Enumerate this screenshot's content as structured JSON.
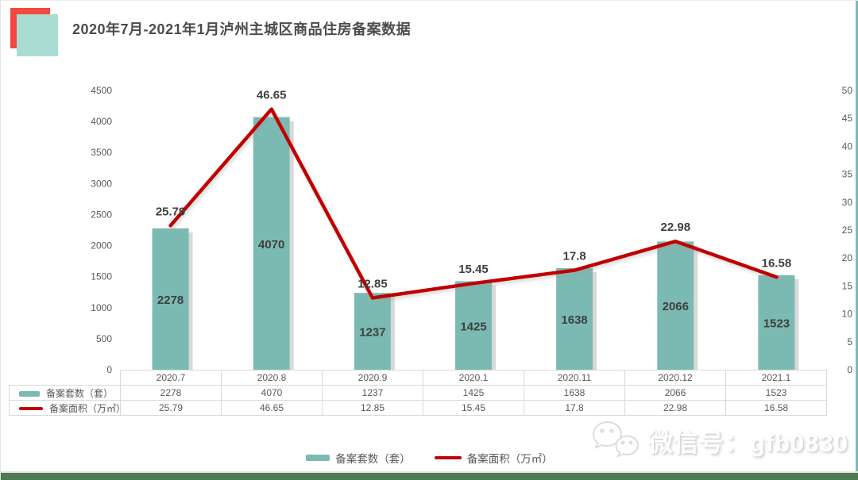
{
  "header": {
    "title": "2020年7月-2021年1月泸州主城区商品住房备案数据"
  },
  "chart_data": {
    "type": "bar+line",
    "title": "2020年7月-2021年1月泸州主城区商品住房备案数据",
    "categories": [
      "2020.7",
      "2020.8",
      "2020.9",
      "2020.1",
      "2020.11",
      "2020.12",
      "2021.1"
    ],
    "series": [
      {
        "name": "备案套数（套）",
        "chart": "bar",
        "axis": "left",
        "color": "#7bbab2",
        "values": [
          2278,
          4070,
          1237,
          1425,
          1638,
          2066,
          1523
        ],
        "labels": [
          "2278",
          "4070",
          "1237",
          "1425",
          "1638",
          "2066",
          "1523"
        ]
      },
      {
        "name": "备案面积（万㎡）",
        "chart": "line",
        "axis": "right",
        "color": "#c00000",
        "values": [
          25.79,
          46.65,
          12.85,
          15.45,
          17.8,
          22.98,
          16.58
        ],
        "labels": [
          "25.79",
          "46.65",
          "12.85",
          "15.45",
          "17.8",
          "22.98",
          "16.58"
        ]
      }
    ],
    "left_axis": {
      "min": 0,
      "max": 4500,
      "step": 500,
      "ticks": [
        0,
        500,
        1000,
        1500,
        2000,
        2500,
        3000,
        3500,
        4000,
        4500
      ]
    },
    "right_axis": {
      "min": 0,
      "max": 50,
      "step": 5,
      "ticks": [
        0,
        5,
        10,
        15,
        20,
        25,
        30,
        35,
        40,
        45,
        50
      ]
    },
    "grid": false,
    "legend_position": "bottom"
  },
  "table": {
    "columns": [
      "2020.7",
      "2020.8",
      "2020.9",
      "2020.1",
      "2020.11",
      "2020.12",
      "2021.1"
    ],
    "rows": [
      {
        "label": "备案套数（套）",
        "values": [
          "2278",
          "4070",
          "1237",
          "1425",
          "1638",
          "2066",
          "1523"
        ]
      },
      {
        "label": "备案面积（万㎡）",
        "values": [
          "25.79",
          "46.65",
          "12.85",
          "15.45",
          "17.8",
          "22.98",
          "16.58"
        ]
      }
    ]
  },
  "legend": {
    "items": [
      {
        "label": "备案套数（套）",
        "type": "bar"
      },
      {
        "label": "备案面积（万㎡）",
        "type": "line"
      }
    ]
  },
  "watermark": {
    "text": "微信号：gfb0830",
    "icon": "wechat-icon"
  },
  "colors": {
    "bar": "#7bbab2",
    "line": "#c00000",
    "logo_red": "#f4473d",
    "logo_teal": "#a9ddd4",
    "border": "#d9d9d9",
    "bottom_strip": "#4e7a54",
    "right_strip": "#7cbcb4",
    "axis_text": "#595959",
    "value_label": "#3f3f3f"
  }
}
